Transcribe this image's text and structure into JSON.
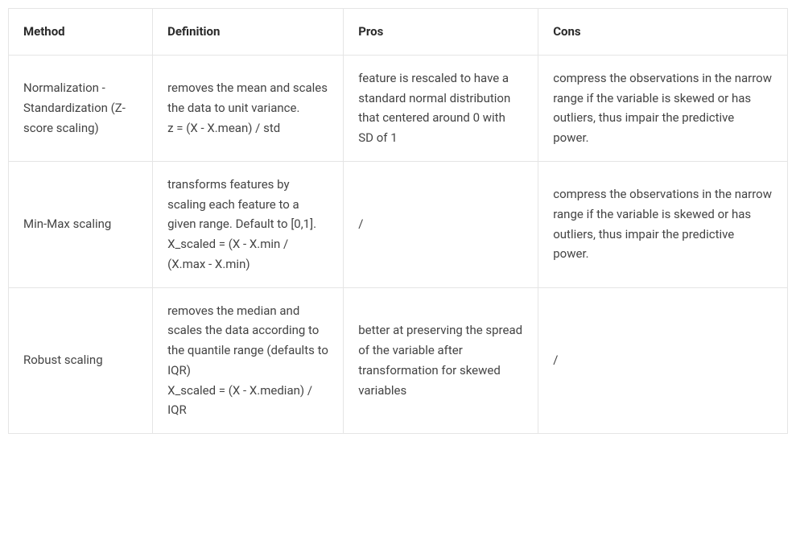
{
  "table": {
    "columns": [
      "Method",
      "Definition",
      "Pros",
      "Cons"
    ],
    "column_widths_pct": [
      18.5,
      24.5,
      25,
      32
    ],
    "rows": [
      {
        "method": "Normalization - Standardization (Z-score scaling)",
        "definition": "removes the mean and scales the data to unit variance.\nz = (X - X.mean) / std",
        "pros": "feature is rescaled to have a standard normal distribution that centered around 0 with SD of 1",
        "cons": "compress the observations in the narrow range if the variable is skewed or has outliers, thus impair the predictive power."
      },
      {
        "method": "Min-Max scaling",
        "definition": "transforms features by scaling each feature to a given range. Default to [0,1].\nX_scaled = (X - X.min / (X.max - X.min)",
        "pros": "/",
        "cons": "compress the observations in the narrow range if the variable is skewed or has outliers, thus impair the predictive power."
      },
      {
        "method": "Robust scaling",
        "definition": "removes the median and scales the data according to the quantile range (defaults to IQR)\nX_scaled = (X - X.median) / IQR",
        "pros": "better at preserving the spread of the variable after transformation for skewed variables",
        "cons": "/"
      }
    ],
    "border_color": "#e5e5e5",
    "background_color": "#ffffff",
    "text_color": "#444444",
    "header_text_color": "#2a2a2a",
    "font_size_pt": 15,
    "header_font_weight": 700
  }
}
